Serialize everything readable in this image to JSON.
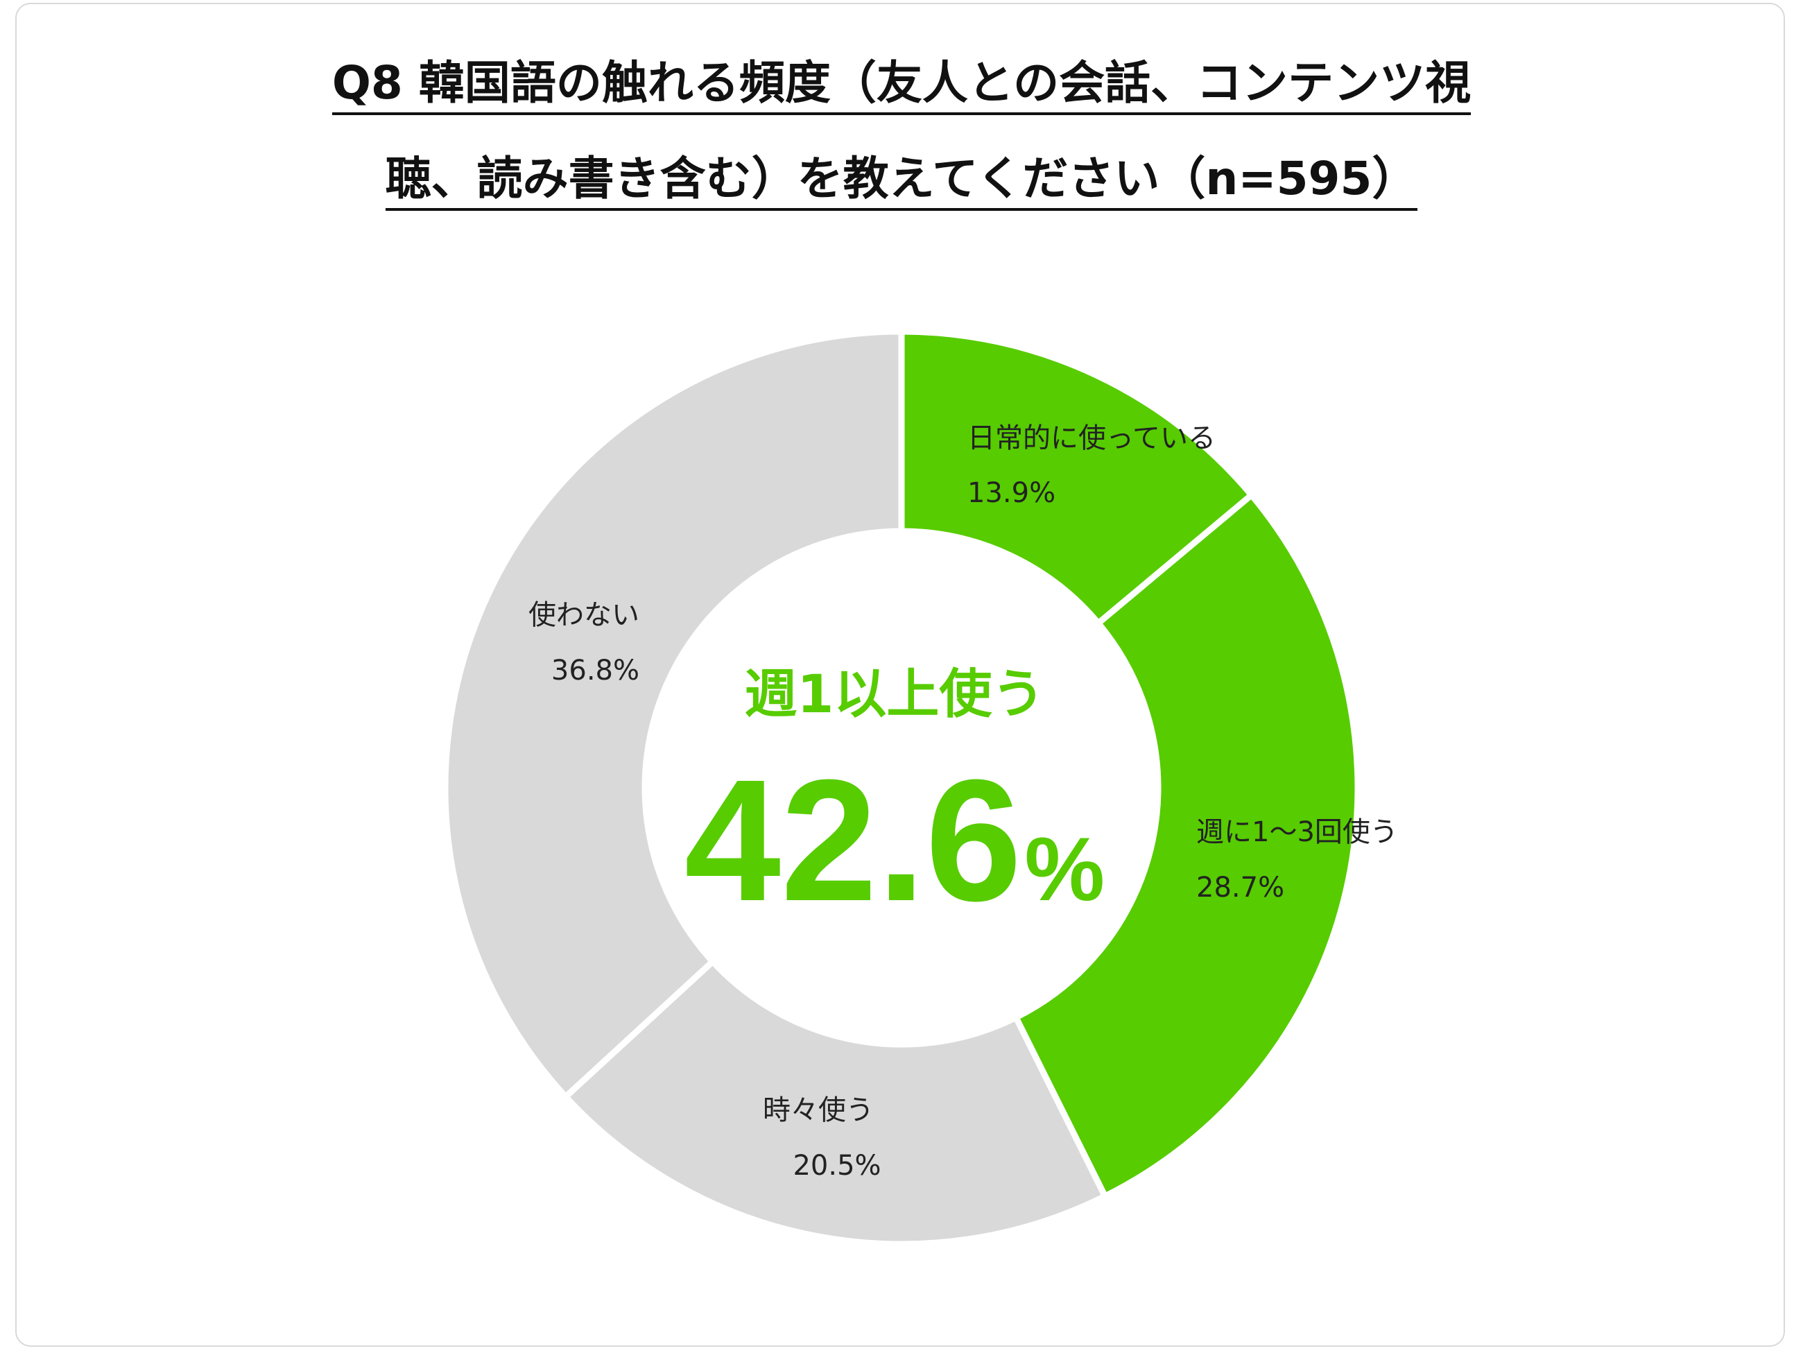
{
  "title_line1": "Q8 韓国語の触れる頻度（友人との会話、コンテンツ視",
  "title_line2": "聴、読み書き含む）を教えてください（n=595）",
  "center": {
    "label": "週1以上使う",
    "value": "42.6",
    "unit": "%"
  },
  "colors": {
    "highlight": "#57cc00",
    "other": "#d9d9d9"
  },
  "chart_data": {
    "type": "pie",
    "donut": true,
    "title": "Q8 韓国語の触れる頻度（友人との会話、コンテンツ視聴、読み書き含む）を教えてください（n=595）",
    "categories": [
      "日常的に使っている",
      "週に1～3回使う",
      "時々使う",
      "使わない"
    ],
    "values": [
      13.9,
      28.7,
      20.5,
      36.8
    ],
    "value_labels": [
      "13.9%",
      "28.7%",
      "20.5%",
      "36.8%"
    ],
    "colors": [
      "#57cc00",
      "#57cc00",
      "#d9d9d9",
      "#d9d9d9"
    ],
    "legend": "none"
  }
}
